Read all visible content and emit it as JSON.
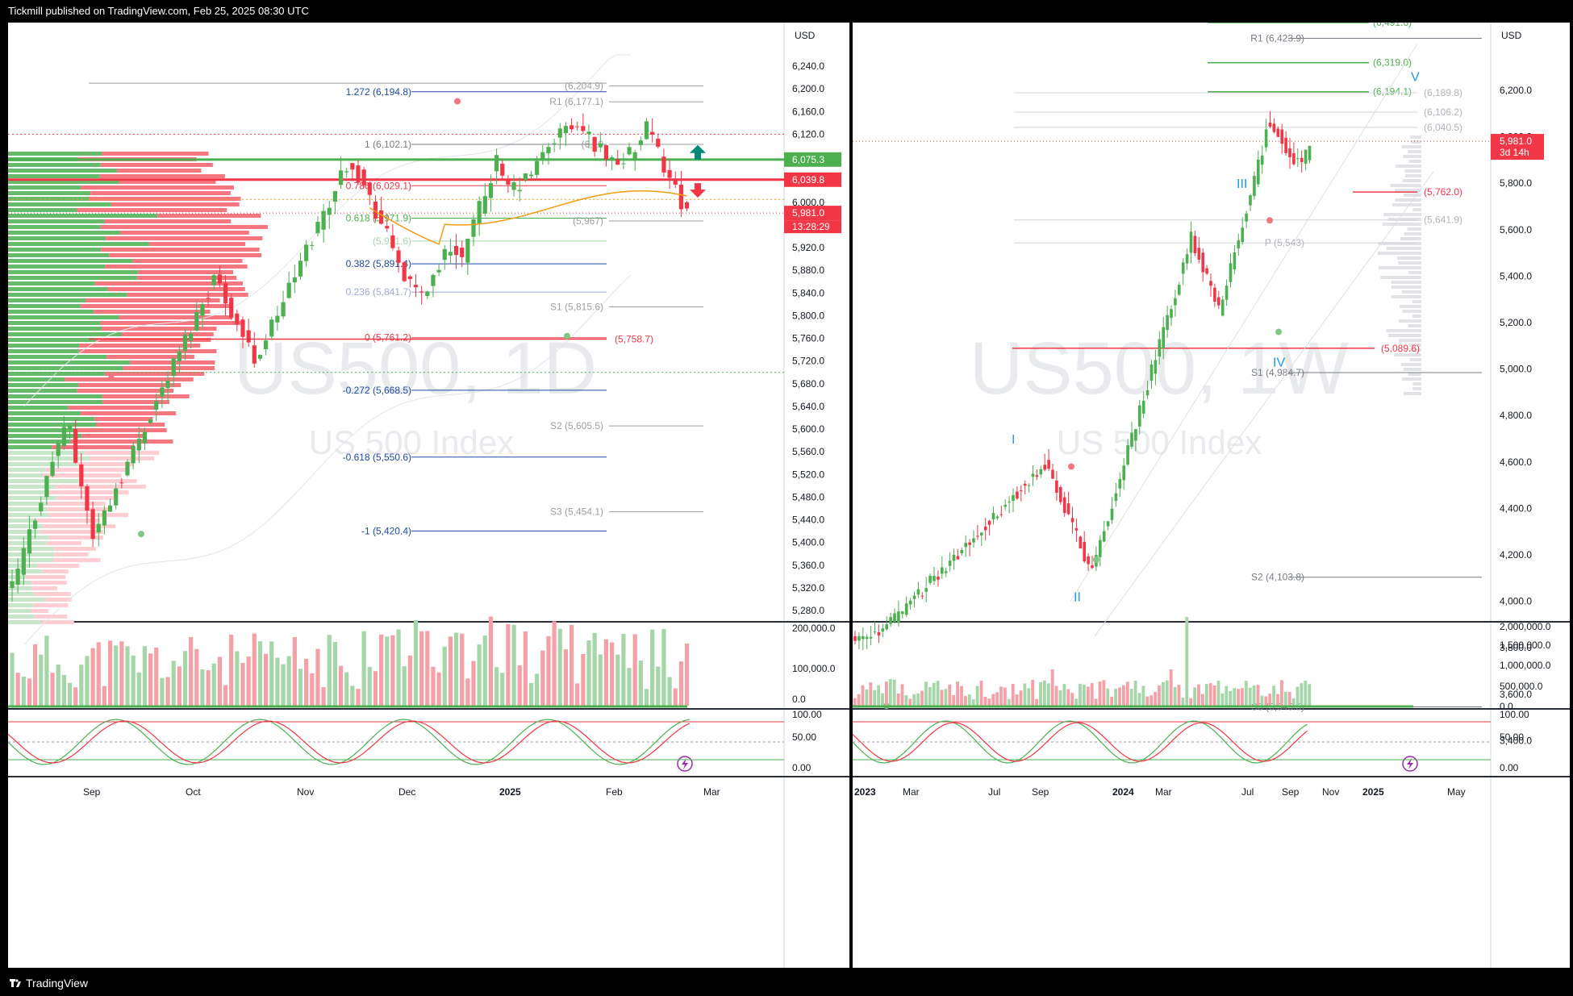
{
  "header": {
    "published": "Tickmill published on TradingView.com, Feb 25, 2025 08:30 UTC"
  },
  "footer": {
    "brand": "TradingView"
  },
  "colors": {
    "up": "#4caf50",
    "down": "#f23645",
    "fib": "#1e4ba8",
    "pivot": "#9e9e9e",
    "ema": "#f39c12",
    "wave": "#2196f3",
    "accent_green": "#4caf50",
    "accent_red": "#f23645"
  },
  "left": {
    "currency": "USD",
    "watermark_symbol": "US500, 1D",
    "watermark_name": "US 500 Index",
    "price_ticks": [
      "6,240.0",
      "6,200.0",
      "6,160.0",
      "6,120.0",
      "6,080.0",
      "6,040.0",
      "6,000.0",
      "5,960.0",
      "5,920.0",
      "5,880.0",
      "5,840.0",
      "5,800.0",
      "5,760.0",
      "5,720.0",
      "5,680.0",
      "5,640.0",
      "5,600.0",
      "5,560.0",
      "5,520.0",
      "5,480.0",
      "5,440.0",
      "5,400.0",
      "5,360.0",
      "5,320.0",
      "5,280.0"
    ],
    "price_badges": [
      {
        "text": "6,075.3",
        "color": "#4caf50",
        "price": 6075.3
      },
      {
        "text": "6,039.8",
        "color": "#f23645",
        "price": 6039.8
      },
      {
        "text": "5,981.0",
        "color": "#f23645",
        "price": 5981.0
      }
    ],
    "countdown": "13:28:29",
    "fib_labels": [
      {
        "text": "1.272 (6,194.8)",
        "price": 6194.8,
        "color": "#1e4ba8"
      },
      {
        "text": "1 (6,102.1)",
        "price": 6102.1,
        "color": "#787b86"
      },
      {
        "text": "0.786 (6,029.1)",
        "price": 6029.1,
        "color": "#f23645"
      },
      {
        "text": "0.618 (5,971.9)",
        "price": 5971.9,
        "color": "#4caf50"
      },
      {
        "text": "(5,931.6)",
        "price": 5931.6,
        "color": "#a5d6a7"
      },
      {
        "text": "0.382 (5,891.4)",
        "price": 5891.4,
        "color": "#1e4ba8"
      },
      {
        "text": "0.236 (5,841.7)",
        "price": 5841.7,
        "color": "#9fa8da"
      },
      {
        "text": "0 (5,761.2)",
        "price": 5761.2,
        "color": "#f23645"
      },
      {
        "text": "-0.272 (5,668.5)",
        "price": 5668.5,
        "color": "#1e4ba8"
      },
      {
        "text": "-0.618 (5,550.6)",
        "price": 5550.6,
        "color": "#1e4ba8"
      },
      {
        "text": "-1 (5,420.4)",
        "price": 5420.4,
        "color": "#1e4ba8"
      }
    ],
    "pivot_labels": [
      {
        "text": "(6,204.9)",
        "price": 6204.9
      },
      {
        "text": "R1 (6,177.1)",
        "price": 6177.1
      },
      {
        "text": "(6,10",
        "price": 6102.1
      },
      {
        "text": "(5,967)",
        "price": 5967
      },
      {
        "text": "S1 (5,815.6)",
        "price": 5815.6
      },
      {
        "text": "S2 (5,605.5)",
        "price": 5605.5
      },
      {
        "text": "S3 (5,454.1)",
        "price": 5454.1
      }
    ],
    "level_label": {
      "text": "(5,758.7)",
      "price": 5758.7
    },
    "volume_ticks": [
      "200,000.0",
      "100,000.0",
      "0.0"
    ],
    "osc_ticks": [
      "100.00",
      "50.00",
      "0.00"
    ],
    "x_labels": [
      "Sep",
      "Oct",
      "Nov",
      "Dec",
      "2025",
      "Feb",
      "Mar"
    ]
  },
  "right": {
    "currency": "USD",
    "watermark_symbol": "US500, 1W",
    "watermark_name": "US 500 Index",
    "price_ticks": [
      "6,200.0",
      "6,000.0",
      "5,800.0",
      "5,600.0",
      "5,400.0",
      "5,200.0",
      "5,000.0",
      "4,800.0",
      "4,600.0",
      "4,400.0",
      "4,200.0",
      "4,000.0",
      "3,800.0",
      "3,600.0",
      "3,400.0"
    ],
    "price_badge": {
      "text": "5,981.0",
      "price": 5981.0
    },
    "countdown": "3d 14h",
    "level_labels": [
      {
        "text": "(6,491.6)",
        "price": 6491.6,
        "color": "#4caf50"
      },
      {
        "text": "R1 (6,423.9)",
        "price": 6423.9,
        "color": "#787b86"
      },
      {
        "text": "(6,319.0)",
        "price": 6319.0,
        "color": "#4caf50"
      },
      {
        "text": "(6,194.1)",
        "price": 6194.1,
        "color": "#4caf50"
      },
      {
        "text": "(6,189.8)",
        "price": 6189.8,
        "color": "#b0b3bb"
      },
      {
        "text": "(6,106.2)",
        "price": 6106.2,
        "color": "#b0b3bb"
      },
      {
        "text": "(6,040.5)",
        "price": 6040.5,
        "color": "#b0b3bb"
      },
      {
        "text": "(5,762.0)",
        "price": 5762.0,
        "color": "#f23645"
      },
      {
        "text": "(5,641.9)",
        "price": 5641.9,
        "color": "#b0b3bb"
      },
      {
        "text": "P (5,543)",
        "price": 5543,
        "color": "#b0b3bb"
      },
      {
        "text": "(5,089.6)",
        "price": 5089.6,
        "color": "#f23645"
      },
      {
        "text": "S1 (4,984.7)",
        "price": 4984.7,
        "color": "#787b86"
      },
      {
        "text": "S2 (4,103.8)",
        "price": 4103.8,
        "color": "#787b86"
      },
      {
        "text": "S3 (3,545.5)",
        "price": 3545.5,
        "color": "#787b86"
      }
    ],
    "waves": [
      {
        "text": "I",
        "price": 4680
      },
      {
        "text": "II",
        "price": 4000
      },
      {
        "text": "III",
        "price": 5780
      },
      {
        "text": "IV",
        "price": 5010
      },
      {
        "text": "V",
        "price": 6240
      }
    ],
    "volume_ticks": [
      "2,000,000.0",
      "1,500,000.0",
      "1,000,000.0",
      "500,000.0",
      "0.0"
    ],
    "osc_ticks": [
      "100.00",
      "50.00",
      "0.00"
    ],
    "x_labels": [
      "2023",
      "Mar",
      "Jul",
      "Sep",
      "2024",
      "Mar",
      "Jul",
      "Sep",
      "Nov",
      "2025",
      "May"
    ]
  }
}
